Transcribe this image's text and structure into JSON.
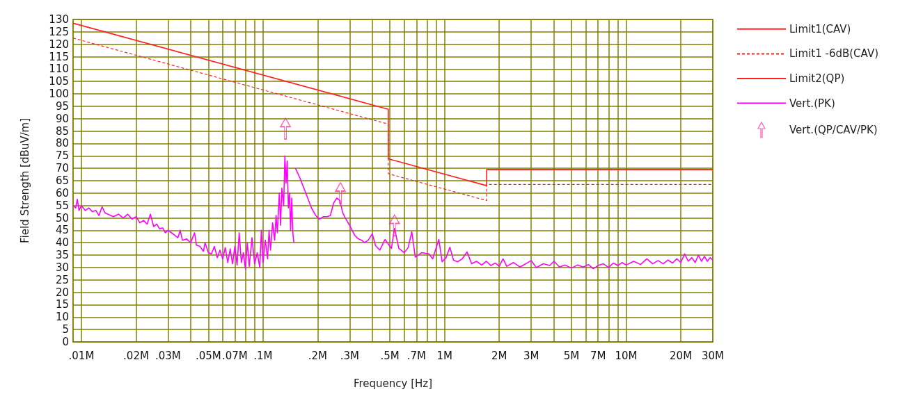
{
  "chart_data": {
    "type": "line",
    "xlabel": "Frequency [Hz]",
    "ylabel": "Field Strength [dBuV/m]",
    "log": "x",
    "grid": true,
    "legend": "right",
    "xlim": [
      0.009,
      30
    ],
    "xticks": [
      {
        "value": 0.01,
        "label": ".01M"
      },
      {
        "value": 0.02,
        "label": ".02M"
      },
      {
        "value": 0.03,
        "label": ".03M"
      },
      {
        "value": 0.04,
        "label": null
      },
      {
        "value": 0.05,
        "label": ".05M"
      },
      {
        "value": 0.06,
        "label": null
      },
      {
        "value": 0.07,
        "label": ".07M"
      },
      {
        "value": 0.08,
        "label": null
      },
      {
        "value": 0.09,
        "label": null
      },
      {
        "value": 0.1,
        "label": ".1M"
      },
      {
        "value": 0.2,
        "label": ".2M"
      },
      {
        "value": 0.3,
        "label": ".3M"
      },
      {
        "value": 0.4,
        "label": null
      },
      {
        "value": 0.5,
        "label": ".5M"
      },
      {
        "value": 0.6,
        "label": null
      },
      {
        "value": 0.7,
        "label": ".7M"
      },
      {
        "value": 0.8,
        "label": null
      },
      {
        "value": 0.9,
        "label": null
      },
      {
        "value": 1,
        "label": "1M"
      },
      {
        "value": 2,
        "label": "2M"
      },
      {
        "value": 3,
        "label": "3M"
      },
      {
        "value": 4,
        "label": null
      },
      {
        "value": 5,
        "label": "5M"
      },
      {
        "value": 6,
        "label": null
      },
      {
        "value": 7,
        "label": "7M"
      },
      {
        "value": 8,
        "label": null
      },
      {
        "value": 9,
        "label": null
      },
      {
        "value": 10,
        "label": "10M"
      },
      {
        "value": 20,
        "label": "20M"
      },
      {
        "value": 30,
        "label": "30M"
      }
    ],
    "ylim": [
      0,
      130
    ],
    "yticks": [
      0,
      5,
      10,
      15,
      20,
      25,
      30,
      35,
      40,
      45,
      50,
      55,
      60,
      65,
      70,
      75,
      80,
      85,
      90,
      95,
      100,
      105,
      110,
      115,
      120,
      125,
      130
    ],
    "series": [
      {
        "name": "Limit1(CAV)",
        "color": "#ff2020",
        "line_style": "solid",
        "x": [
          0.009,
          0.49,
          0.49,
          1.705,
          1.705,
          30
        ],
        "values": [
          128.5,
          93.8,
          73.8,
          63.0,
          69.5,
          69.5
        ]
      },
      {
        "name": "Limit1 -6dB(CAV)",
        "color": "#ff2020",
        "line_style": "dashed",
        "x": [
          0.009,
          0.49,
          0.49,
          1.705,
          1.705,
          30
        ],
        "values": [
          122.5,
          87.8,
          67.8,
          57.0,
          63.5,
          63.5
        ]
      },
      {
        "name": "Limit2(QP)",
        "color": "#ff2020",
        "line_style": "solid",
        "x": [
          1.705,
          30
        ],
        "values": [
          69.5,
          69.5
        ]
      },
      {
        "name": "Vert.(PK)",
        "color": "#ff00ff",
        "line_style": "solid",
        "x": [
          0.009,
          0.0093,
          0.0095,
          0.0097,
          0.01,
          0.0105,
          0.011,
          0.0115,
          0.012,
          0.0125,
          0.013,
          0.0135,
          0.014,
          0.015,
          0.016,
          0.017,
          0.018,
          0.019,
          0.02,
          0.021,
          0.022,
          0.023,
          0.024,
          0.025,
          0.026,
          0.027,
          0.028,
          0.029,
          0.03,
          0.032,
          0.034,
          0.035,
          0.036,
          0.038,
          0.04,
          0.042,
          0.043,
          0.045,
          0.047,
          0.048,
          0.05,
          0.052,
          0.054,
          0.056,
          0.058,
          0.06,
          0.062,
          0.064,
          0.066,
          0.068,
          0.07,
          0.072,
          0.074,
          0.076,
          0.078,
          0.08,
          0.082,
          0.084,
          0.087,
          0.09,
          0.093,
          0.096,
          0.098,
          0.1,
          0.103,
          0.106,
          0.108,
          0.11,
          0.113,
          0.116,
          0.118,
          0.12,
          0.123,
          0.125,
          0.127,
          0.13,
          0.132,
          0.134,
          0.136,
          0.138,
          0.14,
          0.142,
          0.144,
          0.146,
          0.148,
          0.149,
          0.151,
          0.16,
          0.17,
          0.185,
          0.195,
          0.205,
          0.215,
          0.226,
          0.235,
          0.245,
          0.255,
          0.265,
          0.275,
          0.284,
          0.3,
          0.32,
          0.333,
          0.35,
          0.362,
          0.38,
          0.4,
          0.417,
          0.44,
          0.47,
          0.51,
          0.53,
          0.56,
          0.6,
          0.63,
          0.66,
          0.69,
          0.75,
          0.82,
          0.86,
          0.93,
          0.97,
          1.02,
          1.07,
          1.12,
          1.18,
          1.25,
          1.33,
          1.41,
          1.5,
          1.6,
          1.7,
          1.8,
          1.9,
          2.0,
          2.1,
          2.2,
          2.4,
          2.6,
          2.8,
          3.0,
          3.2,
          3.5,
          3.8,
          4.0,
          4.3,
          4.6,
          5.0,
          5.4,
          5.8,
          6.2,
          6.6,
          7.0,
          7.5,
          8.0,
          8.5,
          9.0,
          9.5,
          10,
          11,
          12,
          13,
          14,
          15,
          16,
          17,
          18,
          19,
          20,
          21,
          22,
          23,
          24,
          25,
          26,
          27,
          28,
          29,
          30
        ],
        "values": [
          55,
          54,
          57.5,
          53,
          55,
          53,
          54,
          52.5,
          53,
          51,
          54.5,
          52,
          51.5,
          50.5,
          51.5,
          50,
          51.5,
          49.5,
          50.5,
          48,
          49,
          47.5,
          51.5,
          46.5,
          47.5,
          45.5,
          46,
          44,
          45,
          43.5,
          42,
          45,
          41,
          41.5,
          40,
          44,
          39,
          38.5,
          36.5,
          40,
          36,
          35.5,
          38.5,
          34,
          37,
          33.5,
          38,
          32,
          37.5,
          31.5,
          38.5,
          31,
          44,
          32,
          36,
          29.5,
          40,
          30.5,
          42,
          31.5,
          36,
          30,
          45,
          32,
          41,
          33.5,
          45,
          37,
          48,
          41,
          51,
          44,
          60,
          47,
          62,
          55,
          75,
          64,
          73,
          54,
          60,
          45,
          58,
          44,
          40,
          null,
          70,
          66,
          61,
          54,
          51,
          49.5,
          50.5,
          50.5,
          51,
          56,
          58,
          57,
          52,
          50,
          47,
          43,
          41.7,
          41,
          40,
          41,
          43.6,
          38.8,
          37,
          41.3,
          37.7,
          45.8,
          37.7,
          36,
          38,
          44.4,
          34.2,
          36,
          35.5,
          33.5,
          41.3,
          32.3,
          34,
          38.2,
          33,
          32.3,
          33.5,
          36.3,
          31.5,
          32.5,
          31,
          32.5,
          30.8,
          31.8,
          30.5,
          33.5,
          30.5,
          32,
          30.2,
          31.5,
          32.8,
          30,
          31.5,
          30.8,
          32.5,
          30.2,
          31,
          29.8,
          31,
          30.2,
          31.2,
          29.5,
          30.8,
          31.5,
          30,
          31.8,
          30.8,
          32,
          31,
          32.5,
          31.2,
          33.5,
          31.5,
          32.8,
          31.5,
          33,
          31.8,
          33.5,
          32,
          35.5,
          32.5,
          34,
          32,
          35,
          32.5,
          34.5,
          32.5,
          34,
          33
        ]
      },
      {
        "name": "Vert.(QP/CAV/PK)",
        "type": "scatter",
        "color": "#ff3399",
        "x": [
          0.133,
          0.267,
          0.53
        ],
        "values": [
          86,
          60,
          47
        ]
      }
    ]
  }
}
